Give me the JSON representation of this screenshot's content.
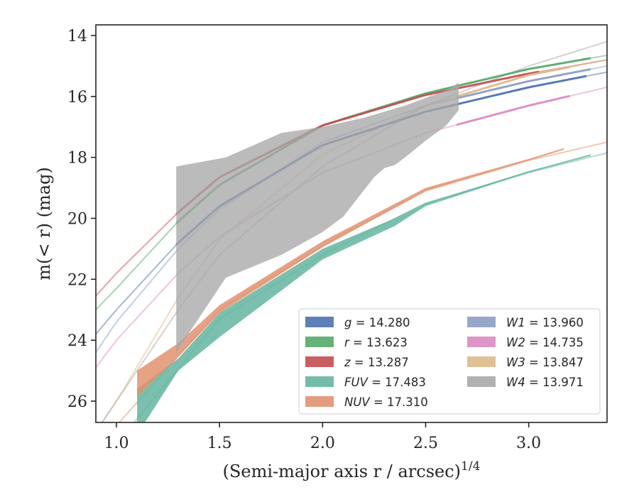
{
  "chart_data": {
    "type": "line",
    "xlabel": "(Semi-major axis r / arcsec)",
    "xlabel_sup": "1/4",
    "ylabel": "m(< r) (mag)",
    "xlim": [
      0.9,
      3.38
    ],
    "ylim": [
      26.7,
      13.65
    ],
    "y_inverted": true,
    "x_ticks": [
      1.0,
      1.5,
      2.0,
      2.5,
      3.0
    ],
    "x_tick_labels": [
      "1.0",
      "1.5",
      "2.0",
      "2.5",
      "3.0"
    ],
    "y_ticks": [
      14,
      16,
      18,
      20,
      22,
      24,
      26
    ],
    "y_tick_labels": [
      "14",
      "16",
      "18",
      "20",
      "22",
      "24",
      "26"
    ],
    "grid": false,
    "legend_position": "lower-right",
    "series": [
      {
        "name": "g",
        "value": "14.280",
        "color": "#4C72B0",
        "fit": [
          [
            0.9,
            23.8
          ],
          [
            1.0,
            23.0
          ],
          [
            1.3,
            20.8
          ],
          [
            1.5,
            19.6
          ],
          [
            2.0,
            17.6
          ],
          [
            2.5,
            16.5
          ],
          [
            3.0,
            15.7
          ],
          [
            3.38,
            15.2
          ]
        ],
        "measured_from": 1.29,
        "measured_to": 3.28
      },
      {
        "name": "r",
        "value": "13.623",
        "color": "#55A868",
        "fit": [
          [
            0.9,
            23.0
          ],
          [
            1.0,
            22.3
          ],
          [
            1.3,
            20.1
          ],
          [
            1.5,
            18.9
          ],
          [
            2.0,
            16.95
          ],
          [
            2.5,
            15.9
          ],
          [
            3.0,
            15.1
          ],
          [
            3.38,
            14.65
          ]
        ],
        "measured_from": 1.29,
        "measured_to": 3.3
      },
      {
        "name": "z",
        "value": "13.287",
        "color": "#C44E52",
        "fit": [
          [
            0.9,
            22.55
          ],
          [
            1.0,
            21.8
          ],
          [
            1.3,
            19.8
          ],
          [
            1.5,
            18.65
          ],
          [
            2.0,
            16.95
          ],
          [
            2.5,
            15.95
          ],
          [
            3.0,
            15.25
          ],
          [
            3.38,
            14.8
          ]
        ],
        "measured_from": 1.29,
        "measured_to": 3.05
      },
      {
        "name": "FUV",
        "value": "17.483",
        "color": "#64B5A0",
        "fit": [
          [
            0.9,
            28.5
          ],
          [
            1.0,
            27.4
          ],
          [
            1.5,
            23.3
          ],
          [
            2.0,
            21.2
          ],
          [
            2.5,
            19.5
          ],
          [
            3.0,
            18.5
          ],
          [
            3.38,
            17.85
          ]
        ],
        "band_upper": [
          [
            1.1,
            25.6
          ],
          [
            1.3,
            24.6
          ],
          [
            1.5,
            23.1
          ],
          [
            2.0,
            21.0
          ],
          [
            2.35,
            20.0
          ],
          [
            2.5,
            19.5
          ],
          [
            3.0,
            18.45
          ],
          [
            3.3,
            17.9
          ]
        ],
        "band_lower": [
          [
            1.1,
            27.1
          ],
          [
            1.3,
            25.0
          ],
          [
            1.5,
            23.9
          ],
          [
            2.0,
            21.35
          ],
          [
            2.35,
            20.25
          ],
          [
            2.5,
            19.6
          ],
          [
            3.0,
            18.5
          ],
          [
            3.3,
            17.95
          ]
        ]
      },
      {
        "name": "NUV",
        "value": "17.310",
        "color": "#E1926E",
        "fit": [
          [
            0.9,
            27.8
          ],
          [
            1.0,
            26.8
          ],
          [
            1.5,
            23.0
          ],
          [
            2.0,
            20.9
          ],
          [
            2.5,
            19.1
          ],
          [
            3.0,
            18.1
          ],
          [
            3.38,
            17.5
          ]
        ],
        "band_upper": [
          [
            1.1,
            25.0
          ],
          [
            1.3,
            24.1
          ],
          [
            1.5,
            22.85
          ],
          [
            2.0,
            20.75
          ],
          [
            2.5,
            19.0
          ],
          [
            3.0,
            18.05
          ],
          [
            3.17,
            17.7
          ]
        ],
        "band_lower": [
          [
            1.1,
            25.85
          ],
          [
            1.3,
            24.55
          ],
          [
            1.5,
            23.1
          ],
          [
            2.0,
            20.95
          ],
          [
            2.5,
            19.1
          ],
          [
            3.0,
            18.1
          ],
          [
            3.17,
            17.75
          ]
        ]
      },
      {
        "name": "W1",
        "value": "13.960",
        "color": "#8C9DC4",
        "fit": [
          [
            0.9,
            24.4
          ],
          [
            1.0,
            23.4
          ],
          [
            1.3,
            21.0
          ],
          [
            1.5,
            19.7
          ],
          [
            2.0,
            17.5
          ],
          [
            2.5,
            16.3
          ],
          [
            3.0,
            15.5
          ],
          [
            3.38,
            15.0
          ]
        ],
        "measured_from": 2.65,
        "measured_to": 3.3
      },
      {
        "name": "W2",
        "value": "14.735",
        "color": "#DA8BC3",
        "fit": [
          [
            0.9,
            24.9
          ],
          [
            1.0,
            24.0
          ],
          [
            1.3,
            21.8
          ],
          [
            1.5,
            20.6
          ],
          [
            2.0,
            18.5
          ],
          [
            2.5,
            17.2
          ],
          [
            3.0,
            16.3
          ],
          [
            3.38,
            15.7
          ]
        ],
        "measured_from": 2.65,
        "measured_to": 3.2
      },
      {
        "name": "W3",
        "value": "13.847",
        "color": "#DDB98A",
        "fit": [
          [
            0.9,
            27.0
          ],
          [
            1.0,
            26.0
          ],
          [
            1.3,
            22.6
          ],
          [
            1.5,
            20.7
          ],
          [
            2.0,
            17.9
          ],
          [
            2.5,
            16.3
          ],
          [
            3.0,
            15.3
          ],
          [
            3.38,
            14.8
          ]
        ],
        "measured_from": 2.65,
        "measured_to": 3.2
      },
      {
        "name": "W4",
        "value": "13.971",
        "color": "#A8A8A8",
        "fit": [
          [
            0.9,
            27.0
          ],
          [
            1.0,
            26.0
          ],
          [
            1.3,
            23.0
          ],
          [
            1.5,
            21.2
          ],
          [
            2.0,
            18.3
          ],
          [
            2.5,
            16.3
          ],
          [
            3.0,
            15.0
          ],
          [
            3.38,
            14.2
          ]
        ],
        "band_upper": [
          [
            1.29,
            18.3
          ],
          [
            1.53,
            18.0
          ],
          [
            1.8,
            17.2
          ],
          [
            2.0,
            17.0
          ],
          [
            2.2,
            16.7
          ],
          [
            2.4,
            16.3
          ],
          [
            2.6,
            15.8
          ],
          [
            2.66,
            15.55
          ]
        ],
        "band_lower": [
          [
            1.29,
            24.4
          ],
          [
            1.53,
            21.95
          ],
          [
            1.8,
            21.2
          ],
          [
            2.0,
            20.45
          ],
          [
            2.1,
            19.95
          ],
          [
            2.25,
            18.65
          ],
          [
            2.3,
            18.35
          ],
          [
            2.35,
            18.25
          ],
          [
            2.4,
            18.0
          ],
          [
            2.5,
            17.45
          ],
          [
            2.6,
            16.95
          ],
          [
            2.66,
            16.45
          ]
        ]
      }
    ]
  }
}
